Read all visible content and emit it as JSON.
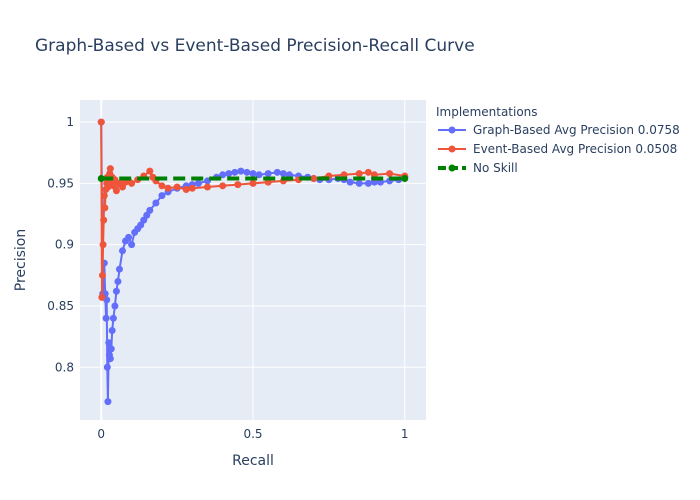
{
  "chart_data": {
    "type": "line",
    "title": "Graph-Based vs Event-Based Precision-Recall Curve",
    "xlabel": "Recall",
    "ylabel": "Precision",
    "xlim": [
      -0.07,
      1.07
    ],
    "ylim": [
      0.757,
      1.018
    ],
    "x_ticks": [
      0,
      0.5,
      1
    ],
    "x_tick_labels": [
      "0",
      "0.5",
      "1"
    ],
    "y_ticks": [
      0.8,
      0.85,
      0.9,
      0.95,
      1
    ],
    "y_tick_labels": [
      "0.8",
      "0.85",
      "0.9",
      "0.95",
      "1"
    ],
    "grid": true,
    "legend": {
      "title": "Implementations",
      "placement": "right"
    },
    "series": [
      {
        "name": "Graph-Based Avg Precision 0.0758",
        "color": "#636efa",
        "dash": "solid",
        "marker": true,
        "x": [
          0.0,
          0.005,
          0.01,
          0.013,
          0.016,
          0.018,
          0.02,
          0.022,
          0.025,
          0.027,
          0.03,
          0.033,
          0.036,
          0.04,
          0.045,
          0.05,
          0.055,
          0.06,
          0.07,
          0.08,
          0.09,
          0.1,
          0.11,
          0.12,
          0.13,
          0.14,
          0.15,
          0.16,
          0.18,
          0.2,
          0.22,
          0.25,
          0.28,
          0.3,
          0.32,
          0.35,
          0.38,
          0.4,
          0.42,
          0.44,
          0.46,
          0.48,
          0.5,
          0.52,
          0.55,
          0.58,
          0.6,
          0.62,
          0.65,
          0.68,
          0.7,
          0.72,
          0.75,
          0.78,
          0.8,
          0.82,
          0.85,
          0.88,
          0.9,
          0.92,
          0.95,
          0.98,
          1.0
        ],
        "y": [
          1.0,
          0.86,
          0.885,
          0.86,
          0.84,
          0.855,
          0.8,
          0.772,
          0.82,
          0.81,
          0.807,
          0.815,
          0.83,
          0.84,
          0.85,
          0.862,
          0.87,
          0.88,
          0.895,
          0.903,
          0.906,
          0.9,
          0.91,
          0.913,
          0.916,
          0.92,
          0.924,
          0.928,
          0.934,
          0.94,
          0.943,
          0.946,
          0.948,
          0.949,
          0.95,
          0.952,
          0.955,
          0.957,
          0.958,
          0.959,
          0.96,
          0.959,
          0.958,
          0.957,
          0.958,
          0.959,
          0.958,
          0.957,
          0.956,
          0.955,
          0.954,
          0.953,
          0.953,
          0.954,
          0.953,
          0.951,
          0.95,
          0.95,
          0.951,
          0.951,
          0.952,
          0.953,
          0.955
        ]
      },
      {
        "name": "Event-Based Avg Precision 0.0508",
        "color": "#ef553b",
        "dash": "solid",
        "marker": true,
        "x": [
          0.0,
          0.002,
          0.004,
          0.006,
          0.008,
          0.01,
          0.012,
          0.015,
          0.018,
          0.02,
          0.022,
          0.025,
          0.028,
          0.03,
          0.033,
          0.036,
          0.04,
          0.045,
          0.05,
          0.06,
          0.07,
          0.08,
          0.09,
          0.1,
          0.12,
          0.14,
          0.16,
          0.17,
          0.18,
          0.2,
          0.22,
          0.25,
          0.28,
          0.3,
          0.35,
          0.4,
          0.45,
          0.5,
          0.55,
          0.6,
          0.65,
          0.7,
          0.75,
          0.8,
          0.85,
          0.88,
          0.9,
          0.95,
          1.0
        ],
        "y": [
          1.0,
          0.857,
          0.875,
          0.9,
          0.92,
          0.94,
          0.93,
          0.945,
          0.95,
          0.955,
          0.947,
          0.955,
          0.958,
          0.962,
          0.95,
          0.955,
          0.948,
          0.953,
          0.944,
          0.95,
          0.947,
          0.951,
          0.952,
          0.95,
          0.953,
          0.956,
          0.96,
          0.955,
          0.952,
          0.948,
          0.946,
          0.947,
          0.945,
          0.946,
          0.947,
          0.948,
          0.949,
          0.95,
          0.951,
          0.952,
          0.953,
          0.954,
          0.956,
          0.957,
          0.958,
          0.959,
          0.957,
          0.958,
          0.956
        ]
      },
      {
        "name": "No Skill",
        "color": "#008000",
        "dash": "dash",
        "marker": true,
        "x": [
          0.0,
          1.0
        ],
        "y": [
          0.954,
          0.954
        ]
      }
    ]
  }
}
